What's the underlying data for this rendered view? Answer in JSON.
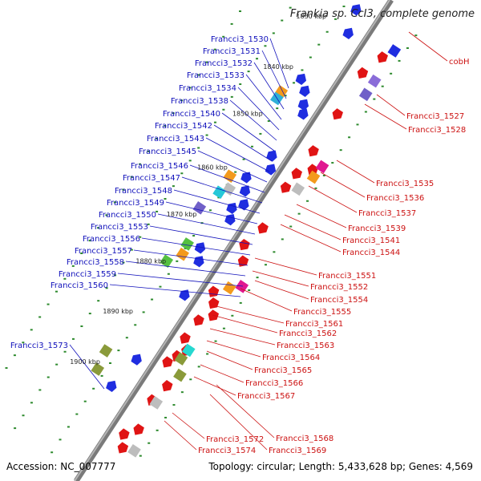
{
  "title": "Frankia sp. CcI3, complete genome",
  "footer": {
    "accession": "Accession: NC_007777",
    "topology": "Topology: circular; Length: 5,433,628 bp; Genes: 4,569"
  },
  "colors": {
    "forward_gene": "#1f2de0",
    "reverse_gene": "#e01414",
    "forward_label": "#1111bb",
    "reverse_label": "#cc1111",
    "backbone": "#7a7a7a",
    "tick": "#2d8a2d"
  },
  "kbp_ticks": [
    "1830 kbp",
    "1840 kbp",
    "1850 kbp",
    "1860 kbp",
    "1870 kbp",
    "1880 kbp",
    "1890 kbp",
    "1900 kbp"
  ],
  "forward_labels": [
    "Francci3_1530",
    "Francci3_1531",
    "Francci3_1532",
    "Francci3_1533",
    "Francci3_1534",
    "Francci3_1538",
    "Francci3_1540",
    "Francci3_1542",
    "Francci3_1543",
    "Francci3_1545",
    "Francci3_1546",
    "Francci3_1547",
    "Francci3_1548",
    "Francci3_1549",
    "Francci3_1550",
    "Francci3_1553",
    "Francci3_1556",
    "Francci3_1557",
    "Francci3_1558",
    "Francci3_1559",
    "Francci3_1560",
    "Francci3_1573"
  ],
  "reverse_labels": [
    "cobH",
    "Francci3_1527",
    "Francci3_1528",
    "Francci3_1535",
    "Francci3_1536",
    "Francci3_1537",
    "Francci3_1539",
    "Francci3_1541",
    "Francci3_1544",
    "Francci3_1551",
    "Francci3_1552",
    "Francci3_1554",
    "Francci3_1555",
    "Francci3_1561",
    "Francci3_1562",
    "Francci3_1563",
    "Francci3_1564",
    "Francci3_1565",
    "Francci3_1566",
    "Francci3_1567",
    "Francci3_1568",
    "Francci3_1569",
    "Francci3_1572",
    "Francci3_1574"
  ]
}
